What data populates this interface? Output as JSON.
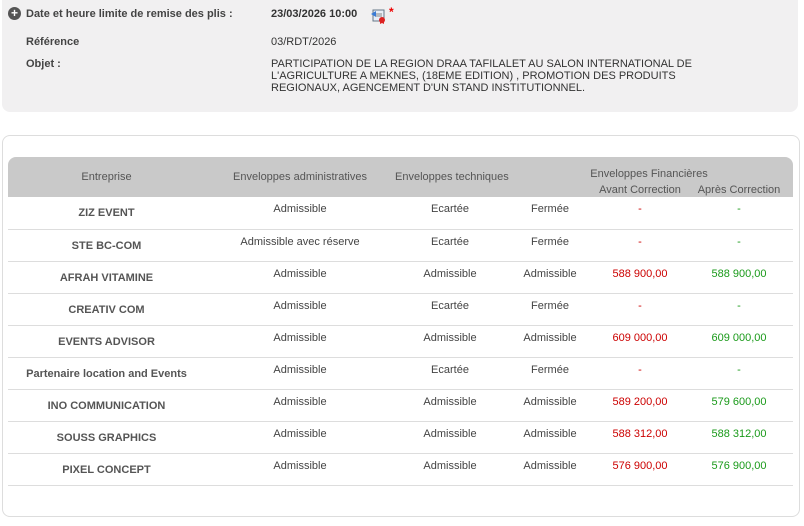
{
  "info": {
    "deadline_label": "Date et heure limite de remise des plis :",
    "deadline_value": "23/03/2026 10:00",
    "reference_label": "Référence",
    "reference_value": "03/RDT/2026",
    "objet_label": "Objet :",
    "objet_lines": [
      "PARTICIPATION DE LA REGION DRAA TAFILALET AU SALON INTERNATIONAL DE",
      "L'AGRICULTURE A MEKNES, (18EME EDITION) , PROMOTION DES PRODUITS",
      "REGIONAUX, AGENCEMENT D'UN STAND INSTITUTIONNEL."
    ]
  },
  "table": {
    "headers": {
      "entreprise": "Entreprise",
      "admin": "Enveloppes administratives",
      "tech": "Enveloppes techniques",
      "fin": "Enveloppes Financières",
      "avant": "Avant Correction",
      "apres": "Après Correction"
    },
    "rows": [
      {
        "name": "ZIZ EVENT",
        "admin": "Admissible",
        "tech": "Ecartée",
        "fin": "Fermée",
        "avant": "-",
        "apres": "-"
      },
      {
        "name": "STE BC-COM",
        "admin": "Admissible avec réserve",
        "tech": "Ecartée",
        "fin": "Fermée",
        "avant": "-",
        "apres": "-"
      },
      {
        "name": "AFRAH VITAMINE",
        "admin": "Admissible",
        "tech": "Admissible",
        "fin": "Admissible",
        "avant": "588 900,00",
        "apres": "588 900,00"
      },
      {
        "name": "CREATIV COM",
        "admin": "Admissible",
        "tech": "Ecartée",
        "fin": "Fermée",
        "avant": "-",
        "apres": "-"
      },
      {
        "name": "EVENTS ADVISOR",
        "admin": "Admissible",
        "tech": "Admissible",
        "fin": "Admissible",
        "avant": "609 000,00",
        "apres": "609 000,00"
      },
      {
        "name": "Partenaire location and Events",
        "admin": "Admissible",
        "tech": "Ecartée",
        "fin": "Fermée",
        "avant": "-",
        "apres": "-"
      },
      {
        "name": "INO COMMUNICATION",
        "admin": "Admissible",
        "tech": "Admissible",
        "fin": "Admissible",
        "avant": "589 200,00",
        "apres": "579 600,00"
      },
      {
        "name": "SOUSS GRAPHICS",
        "admin": "Admissible",
        "tech": "Admissible",
        "fin": "Admissible",
        "avant": "588 312,00",
        "apres": "588 312,00"
      },
      {
        "name": "PIXEL CONCEPT",
        "admin": "Admissible",
        "tech": "Admissible",
        "fin": "Admissible",
        "avant": "576 900,00",
        "apres": "576 900,00"
      }
    ]
  },
  "colors": {
    "avant": "#cc0000",
    "apres": "#1a9a1a"
  }
}
